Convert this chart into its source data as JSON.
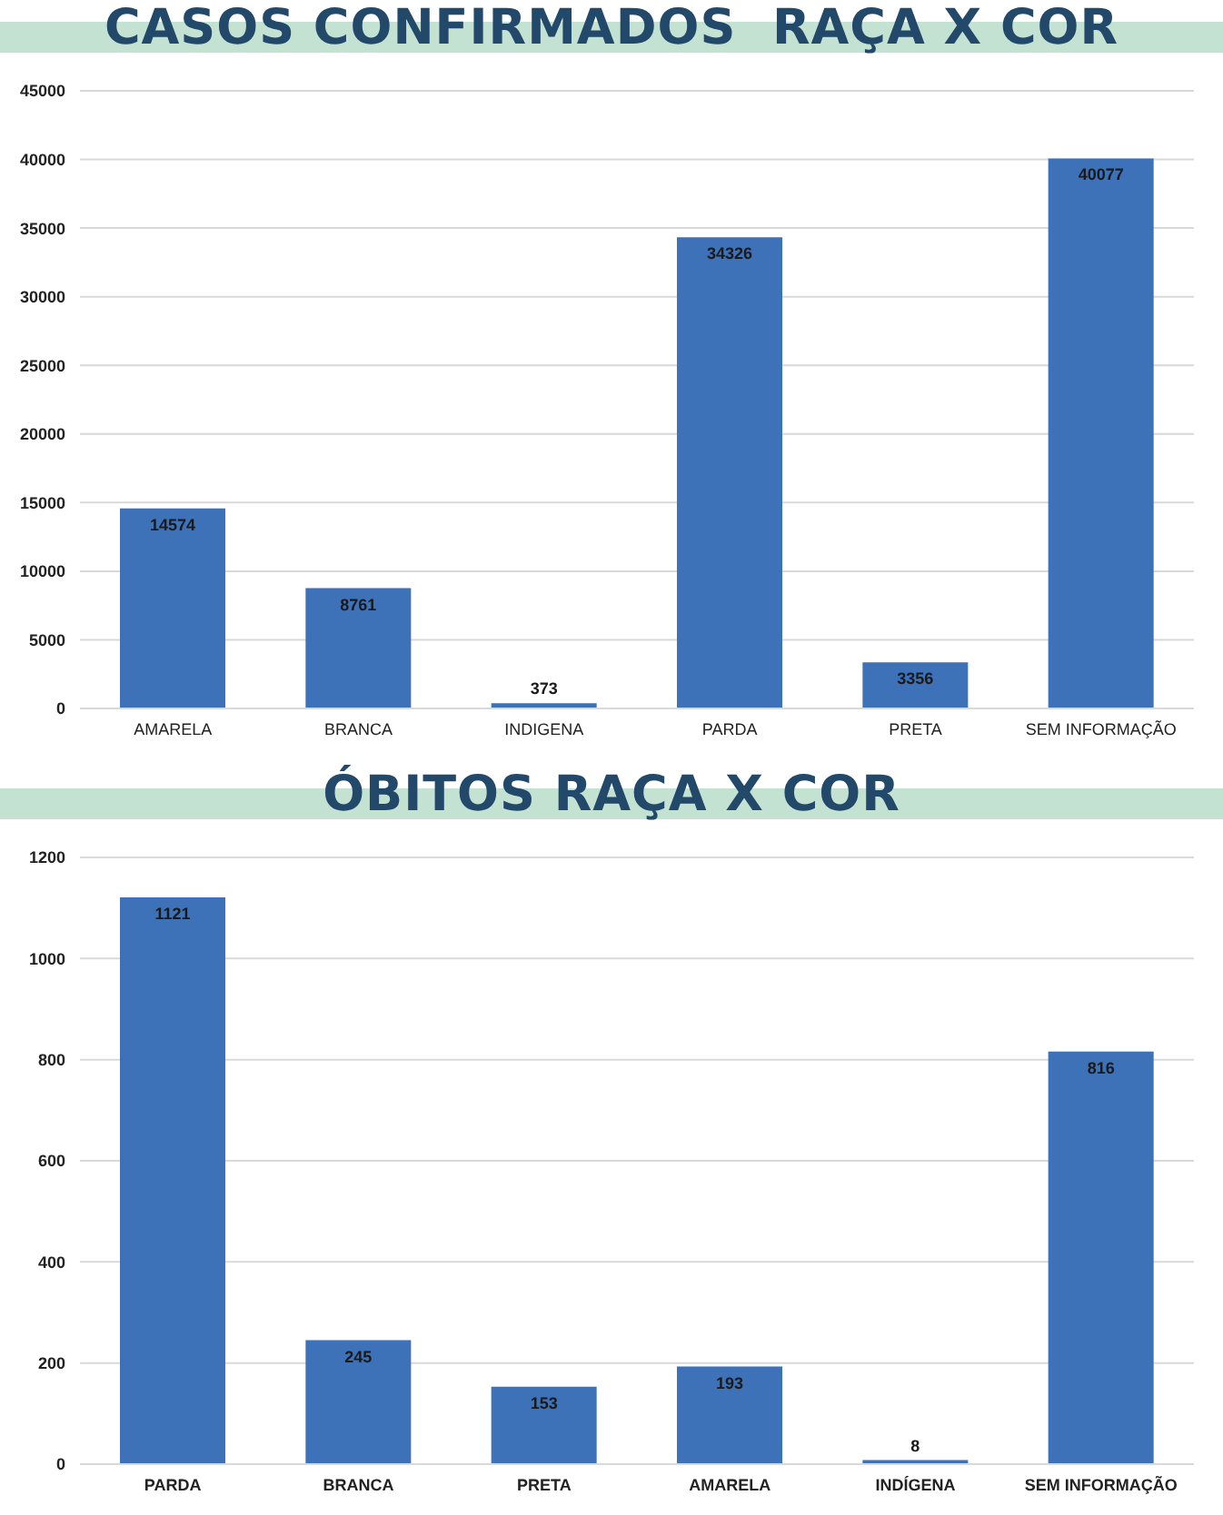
{
  "chart_data": [
    {
      "type": "bar",
      "title": "CASOS CONFIRMADOS  RAÇA X COR",
      "categories": [
        "AMARELA",
        "BRANCA",
        "INDIGENA",
        "PARDA",
        "PRETA",
        "SEM INFORMAÇÃO"
      ],
      "values": [
        14574,
        8761,
        373,
        34326,
        3356,
        40077
      ],
      "color": "#3d71b8",
      "ylim": [
        0,
        45000
      ],
      "yticks": [
        0,
        5000,
        10000,
        15000,
        20000,
        25000,
        30000,
        35000,
        40000,
        45000
      ],
      "grid": "y",
      "data_labels": true
    },
    {
      "type": "bar",
      "title": "ÓBITOS RAÇA X COR",
      "categories": [
        "PARDA",
        "BRANCA",
        "PRETA",
        "AMARELA",
        "INDÍGENA",
        "SEM INFORMAÇÃO"
      ],
      "values": [
        1121,
        245,
        153,
        193,
        8,
        816
      ],
      "color": "#3d71b8",
      "ylim": [
        0,
        1200
      ],
      "yticks": [
        0,
        200,
        400,
        600,
        800,
        1000,
        1200
      ],
      "grid": "y",
      "data_labels": true
    }
  ]
}
